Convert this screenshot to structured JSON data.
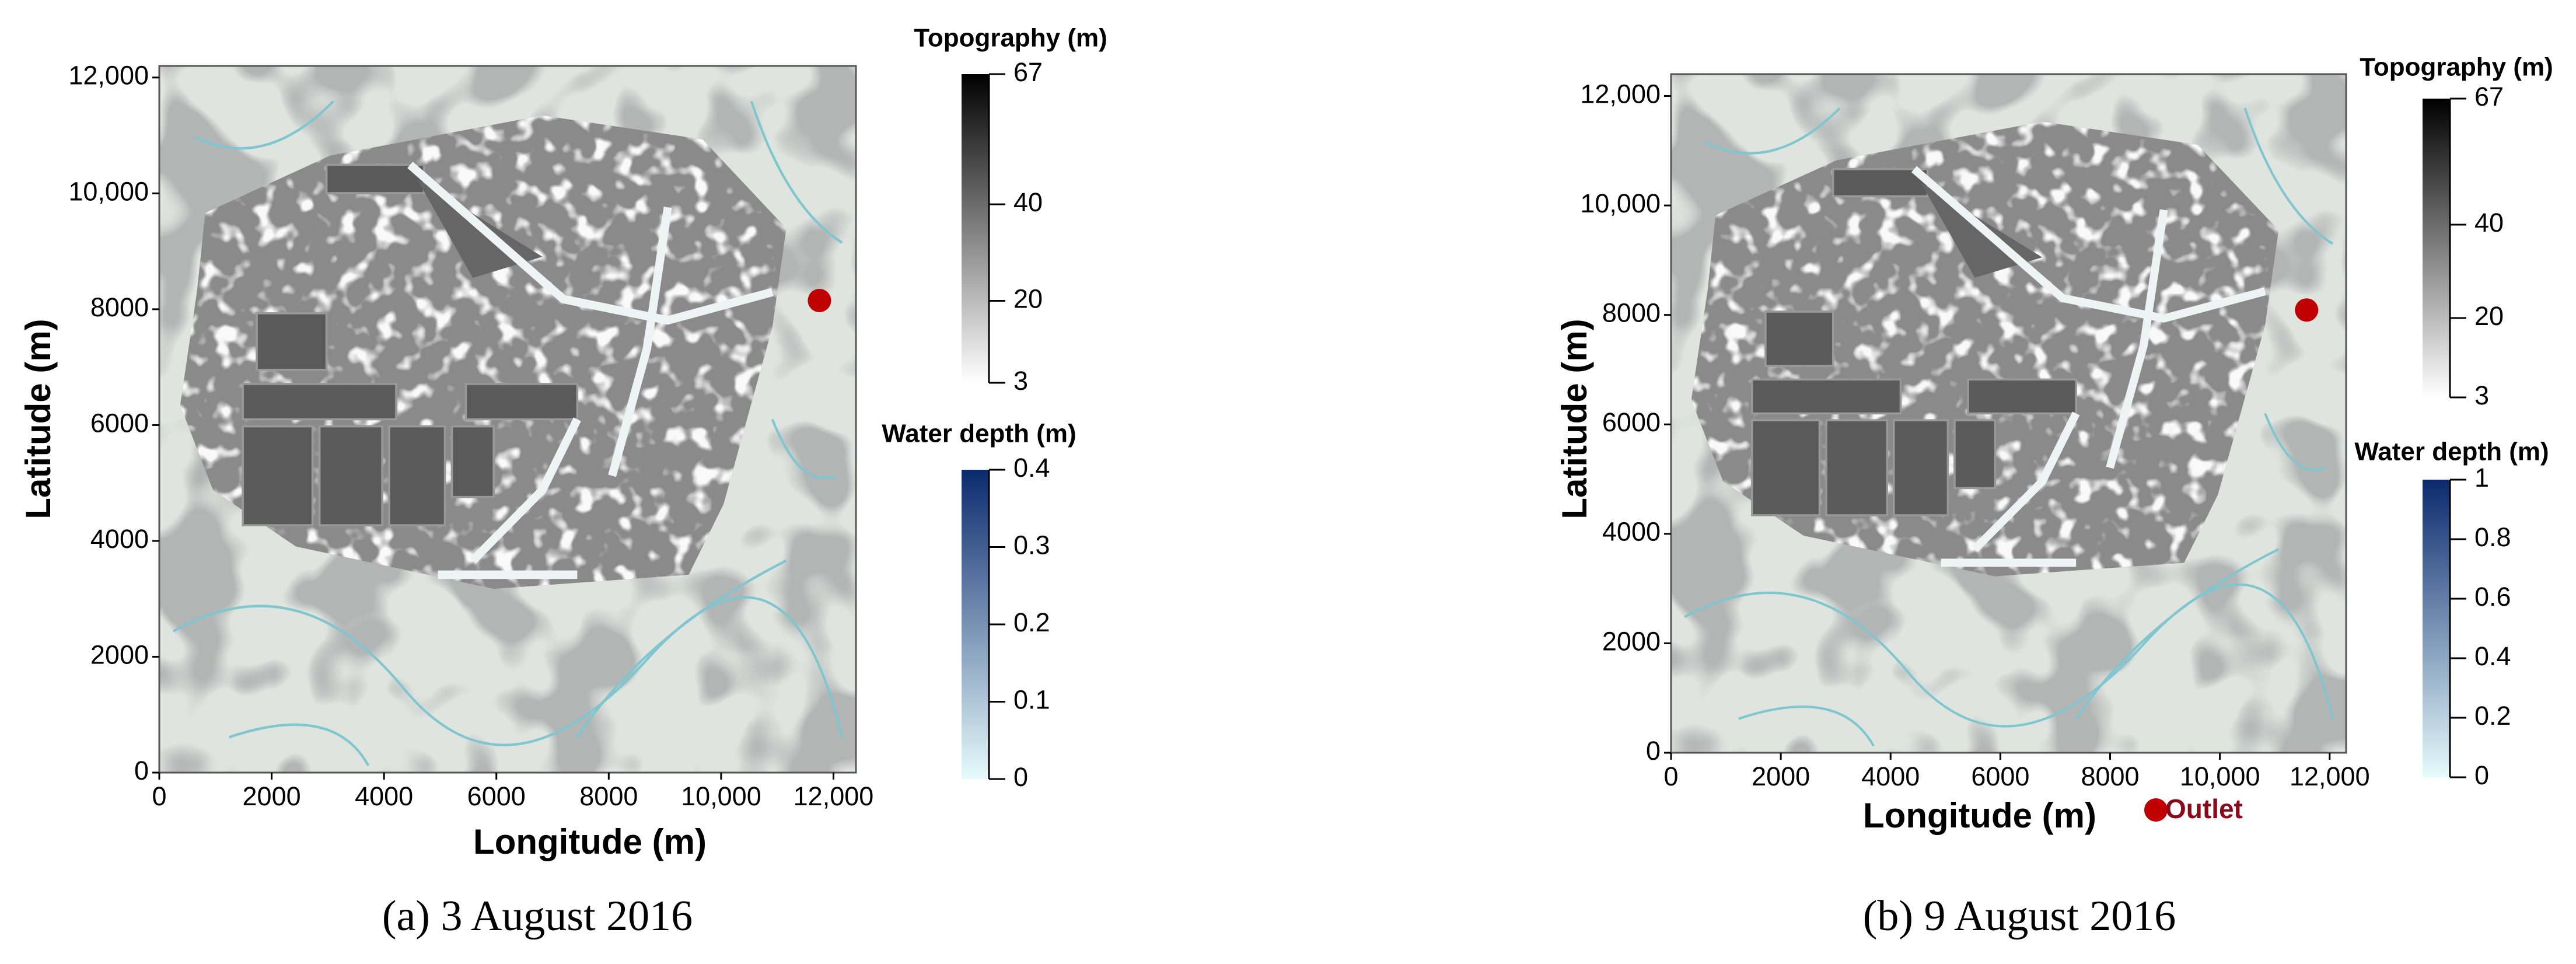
{
  "chart_data": [
    {
      "type": "map",
      "xlabel": "Longitude (m)",
      "ylabel": "Latitude (m)",
      "caption": "(a) 3 August 2016",
      "xlim": [
        0,
        12400
      ],
      "ylim": [
        0,
        12200
      ],
      "xticks": [
        0,
        2000,
        4000,
        6000,
        8000,
        {
          "value": 10000,
          "label": "10,000"
        },
        {
          "value": 12000,
          "label": "12,000"
        }
      ],
      "yticks": [
        0,
        2000,
        4000,
        6000,
        8000,
        {
          "value": 10000,
          "label": "10,000"
        },
        {
          "value": 12000,
          "label": "12,000"
        }
      ],
      "points": {
        "x": [
          11750
        ],
        "y": [
          8150
        ],
        "color": "#c00000"
      },
      "colorbars": [
        {
          "title": "Topography (m)",
          "clim": [
            3,
            67
          ],
          "ticks": [
            3,
            20,
            40,
            67
          ],
          "colors": [
            "#ffffff",
            "#000000"
          ]
        },
        {
          "title": "Water depth (m)",
          "clim": [
            0,
            0.4
          ],
          "ticks": [
            0,
            0.1,
            0.2,
            0.3,
            0.4
          ],
          "colors": [
            "#e6fbfb",
            "#0b2a6e"
          ]
        }
      ]
    },
    {
      "type": "map",
      "xlabel": "Longitude (m)",
      "ylabel": "Latitude (m)",
      "caption": "(b) 9 August 2016",
      "xlim": [
        0,
        12300
      ],
      "ylim": [
        0,
        12400
      ],
      "xticks": [
        0,
        2000,
        4000,
        6000,
        8000,
        {
          "value": 10000,
          "label": "10,000"
        },
        {
          "value": 12000,
          "label": "12,000"
        }
      ],
      "yticks": [
        0,
        2000,
        4000,
        6000,
        8000,
        {
          "value": 10000,
          "label": "10,000"
        },
        {
          "value": 12000,
          "label": "12,000"
        }
      ],
      "points": {
        "name": "Outlet",
        "x": [
          11580
        ],
        "y": [
          8090
        ],
        "color": "#c00000"
      },
      "colorbars": [
        {
          "title": "Topography (m)",
          "clim": [
            3,
            67
          ],
          "ticks": [
            3,
            20,
            40,
            67
          ],
          "colors": [
            "#ffffff",
            "#000000"
          ]
        },
        {
          "title": "Water depth (m)",
          "clim": [
            0,
            1
          ],
          "ticks": [
            0,
            0.2,
            0.4,
            0.6,
            0.8,
            1
          ],
          "colors": [
            "#e6fbfb",
            "#0b2a6e"
          ]
        }
      ]
    }
  ]
}
